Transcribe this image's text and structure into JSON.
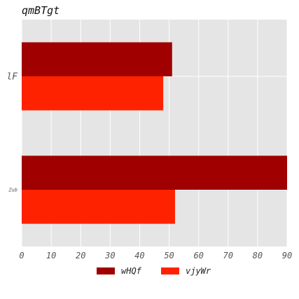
{
  "chart_data": {
    "type": "bar",
    "orientation": "horizontal",
    "title": "qmBTgt",
    "xlabel": "",
    "ylabel": "",
    "categories": [
      "lF",
      "Zub"
    ],
    "series": [
      {
        "name": "wHQf",
        "values": [
          51,
          90
        ],
        "color": "#a00000"
      },
      {
        "name": "vjyWr",
        "values": [
          48,
          52
        ],
        "color": "#ff2200"
      }
    ],
    "xlim": [
      0,
      90
    ],
    "xticks": [
      0,
      10,
      20,
      30,
      40,
      50,
      60,
      70,
      80,
      90
    ],
    "grid": true,
    "legend_position": "bottom-center",
    "colors": {
      "plot_background": "#e5e5e5",
      "grid": "#ffffff"
    }
  }
}
